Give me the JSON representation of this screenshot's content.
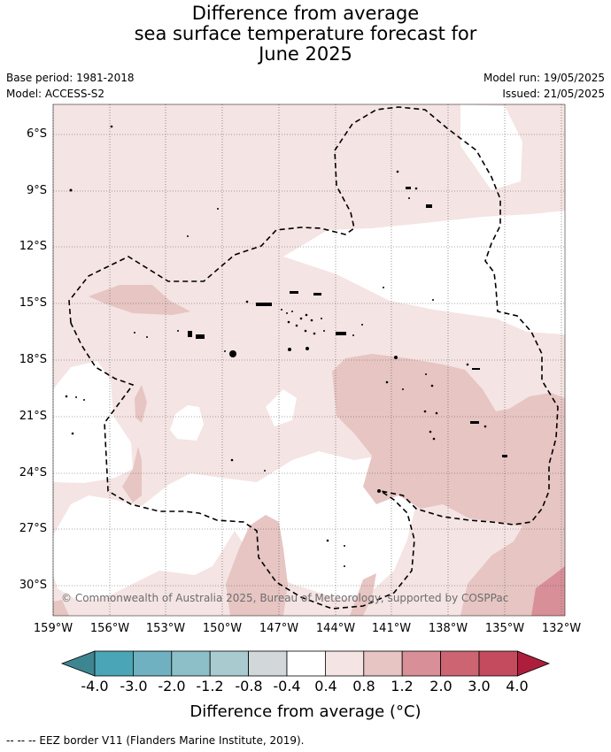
{
  "title": {
    "line1": "Difference from average",
    "line2": "sea surface temperature forecast for",
    "line3": "June 2025"
  },
  "meta": {
    "base_period": "Base period: 1981-2018",
    "model": "Model: ACCESS-S2",
    "model_run": "Model run: 19/05/2025",
    "issued": "Issued: 21/05/2025"
  },
  "map": {
    "latitude_labels": [
      "6°S",
      "9°S",
      "12°S",
      "15°S",
      "18°S",
      "21°S",
      "24°S",
      "27°S",
      "30°S"
    ],
    "longitude_labels": [
      "159°W",
      "156°W",
      "153°W",
      "150°W",
      "147°W",
      "144°W",
      "141°W",
      "138°W",
      "135°W",
      "132°W"
    ],
    "copyright": "© Commonwealth of Australia 2025, Bureau of Meteorology, supported by COSPPac"
  },
  "colorbar": {
    "tick_labels": [
      "-4.0",
      "-3.0",
      "-2.0",
      "-1.2",
      "-0.8",
      "-0.4",
      "0.4",
      "0.8",
      "1.2",
      "2.0",
      "3.0",
      "4.0"
    ],
    "colors": [
      "#3e8592",
      "#4aa6b6",
      "#6fb1c0",
      "#8dbfc9",
      "#a9cbd0",
      "#d2d7d9",
      "#ffffff",
      "#f4e4e3",
      "#e6c5c3",
      "#d88f98",
      "#cd6472",
      "#c44a5e",
      "#ad1e3c"
    ],
    "title": "Difference from average (°C)"
  },
  "footer": {
    "eez_note": "--  --  -- EEZ border V11 (Flanders Marine Institute, 2019)."
  }
}
